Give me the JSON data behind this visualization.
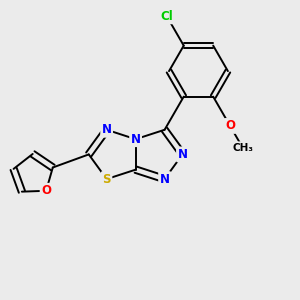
{
  "bg": "#ebebeb",
  "bond_color": "#000000",
  "col_N": "#0000ff",
  "col_S": "#ccaa00",
  "col_O": "#ff0000",
  "col_Cl": "#00cc00",
  "col_C": "#000000",
  "lw": 1.4,
  "fs": 8.5,
  "figsize": [
    3.0,
    3.0
  ],
  "dpi": 100,
  "xlim": [
    0,
    10
  ],
  "ylim": [
    0,
    10
  ]
}
